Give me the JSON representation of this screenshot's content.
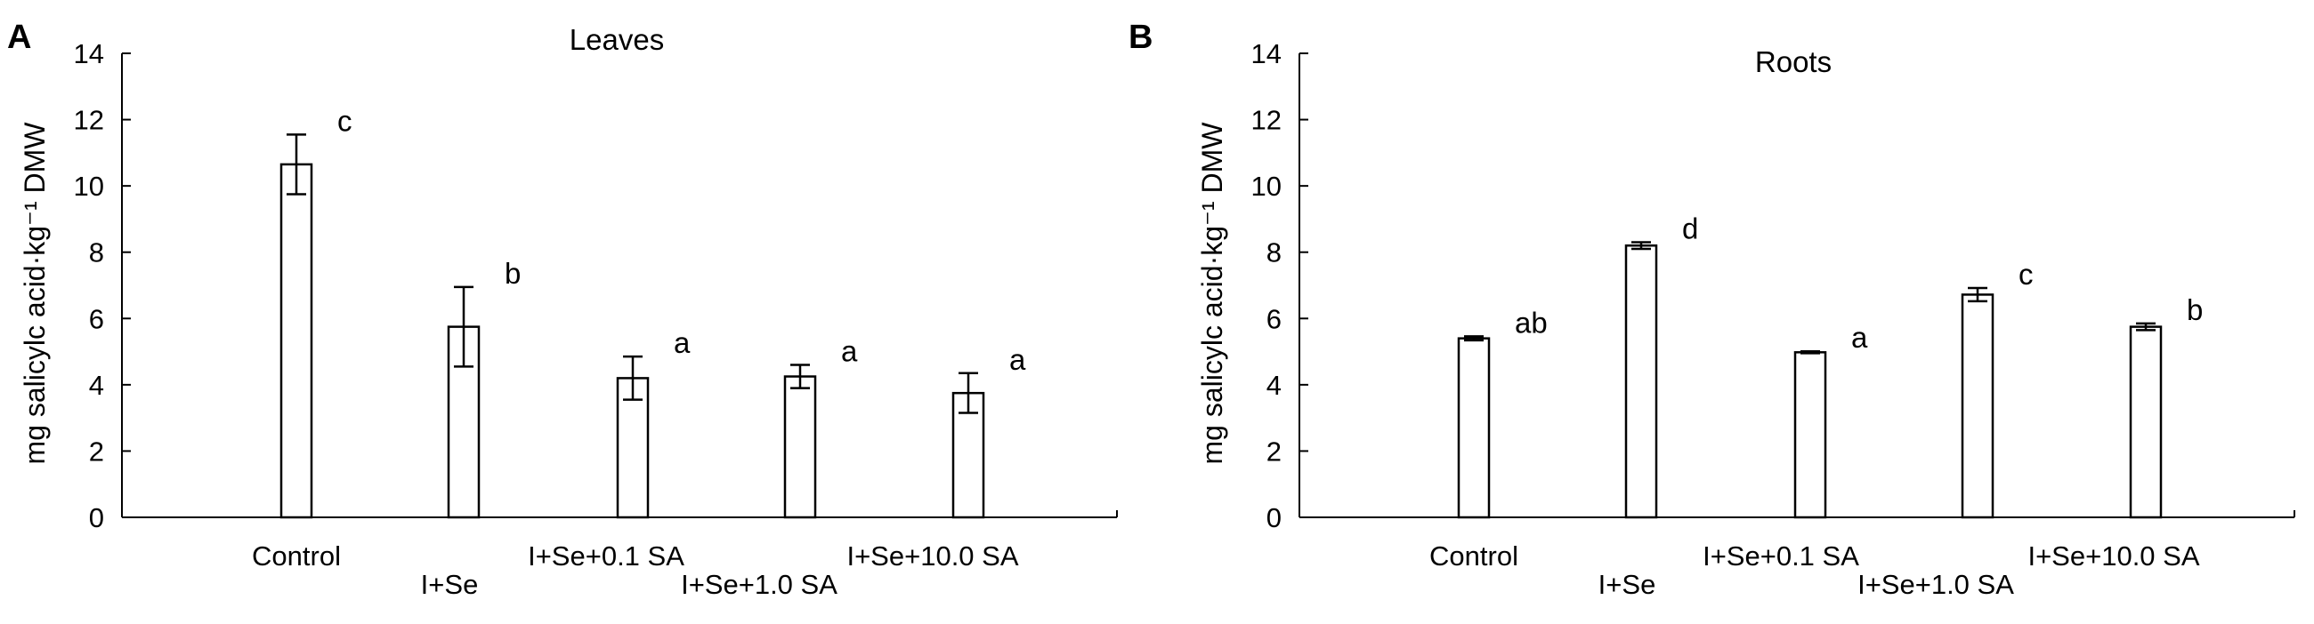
{
  "chart_data": [
    {
      "type": "bar",
      "panel_label": "A",
      "title": "Leaves",
      "ylabel": "mg salicylc acid·kg⁻¹ DMW",
      "xlabel": "",
      "ylim": [
        0,
        14
      ],
      "yticks": [
        "0",
        "2",
        "4",
        "6",
        "8",
        "10",
        "12",
        "14"
      ],
      "grid": false,
      "categories": [
        "Control",
        "I+Se",
        "I+Se+0.1 SA",
        "I+Se+1.0 SA",
        "I+Se+10.0 SA"
      ],
      "values": [
        10.65,
        5.75,
        4.2,
        4.25,
        3.75
      ],
      "errors": [
        0.9,
        1.2,
        0.65,
        0.35,
        0.6
      ],
      "significance": [
        "c",
        "b",
        "a",
        "a",
        "a"
      ]
    },
    {
      "type": "bar",
      "panel_label": "B",
      "title": "Roots",
      "ylabel": "mg salicylc acid·kg⁻¹ DMW",
      "xlabel": "",
      "ylim": [
        0,
        14
      ],
      "yticks": [
        "0",
        "2",
        "4",
        "6",
        "8",
        "10",
        "12",
        "14"
      ],
      "grid": false,
      "categories": [
        "Control",
        "I+Se",
        "I+Se+0.1 SA",
        "I+Se+1.0 SA",
        "I+Se+10.0 SA"
      ],
      "values": [
        5.4,
        8.2,
        4.98,
        6.72,
        5.75
      ],
      "errors": [
        0.06,
        0.1,
        0.03,
        0.2,
        0.1
      ],
      "significance": [
        "ab",
        "d",
        "a",
        "c",
        "b"
      ]
    }
  ],
  "colors": {
    "bar_fill": "#ffffff",
    "bar_stroke": "#000000",
    "axis": "#000000"
  }
}
